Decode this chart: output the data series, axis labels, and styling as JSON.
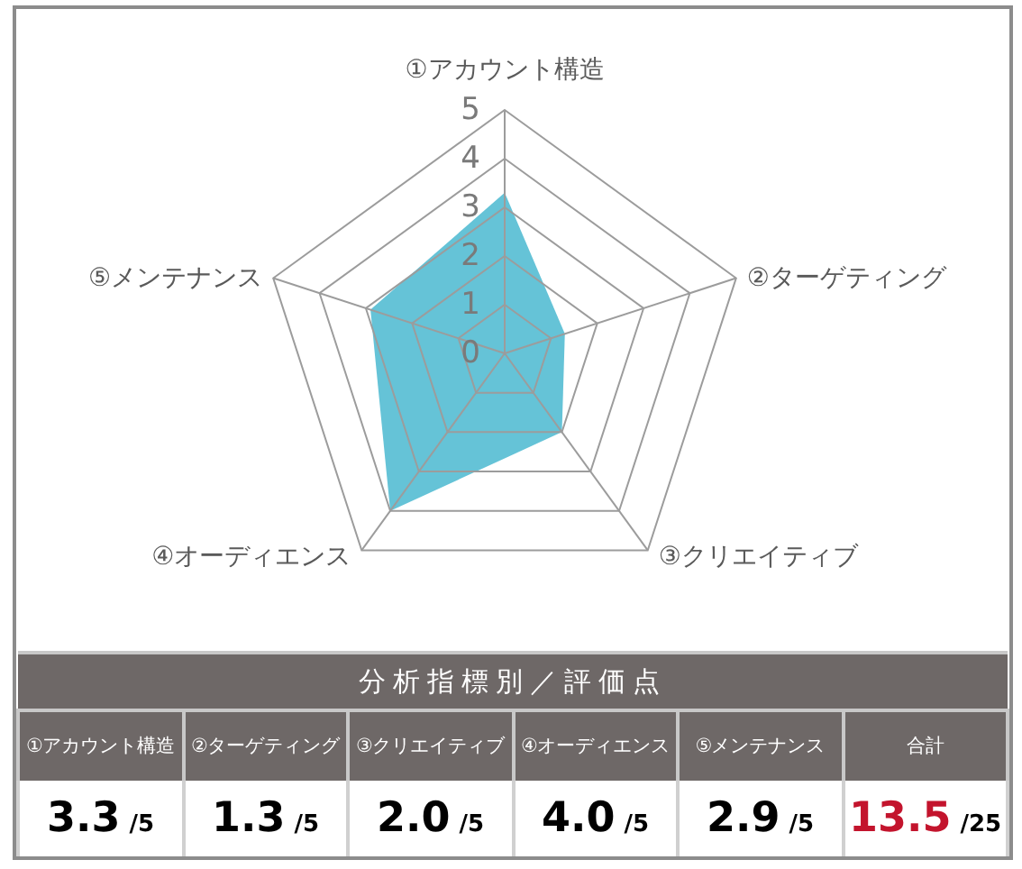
{
  "chart_data": {
    "type": "radar",
    "categories": [
      "①アカウント構造",
      "②ターゲティング",
      "③クリエイティブ",
      "④オーディエンス",
      "⑤メンテナンス"
    ],
    "series": [
      {
        "color": "#65c3d7",
        "values": [
          3.3,
          1.3,
          2.0,
          4.0,
          2.9
        ]
      }
    ],
    "ylim": [
      0,
      5
    ],
    "yticks": [
      0,
      1,
      2,
      3,
      4,
      5
    ],
    "grid": true,
    "annotations": [
      "分析指標別／評価点",
      "合計",
      "3.3",
      "/5",
      "1.3",
      "/5",
      "2.0",
      "/5",
      "4.0",
      "/5",
      "2.9",
      "/5",
      "13.5",
      "/25"
    ]
  }
}
